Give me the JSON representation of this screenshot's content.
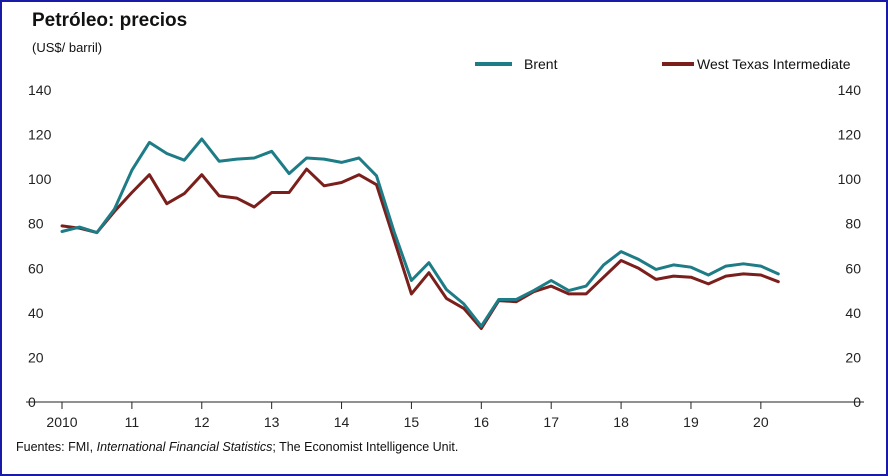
{
  "chart_data": {
    "type": "line",
    "title": "Petróleo: precios",
    "subtitle": "(US$/ barril)",
    "source": {
      "prefix": "Fuentes: FMI, ",
      "italic": "International Financial Statistics",
      "suffix": "; The Economist Intelligence Unit."
    },
    "ylim": [
      0,
      140
    ],
    "yticks": [
      0,
      20,
      40,
      60,
      80,
      100,
      120,
      140
    ],
    "xlim": [
      2010,
      2020.875
    ],
    "xticks": [
      {
        "value": 2010,
        "label": "2010"
      },
      {
        "value": 2011,
        "label": "11"
      },
      {
        "value": 2012,
        "label": "12"
      },
      {
        "value": 2013,
        "label": "13"
      },
      {
        "value": 2014,
        "label": "14"
      },
      {
        "value": 2015,
        "label": "15"
      },
      {
        "value": 2016,
        "label": "16"
      },
      {
        "value": 2017,
        "label": "17"
      },
      {
        "value": 2018,
        "label": "18"
      },
      {
        "value": 2019,
        "label": "19"
      },
      {
        "value": 2020,
        "label": "20"
      }
    ],
    "grid": false,
    "legend_position": "top-right",
    "x": [
      2010.0,
      2010.25,
      2010.5,
      2010.75,
      2011.0,
      2011.25,
      2011.5,
      2011.75,
      2012.0,
      2012.25,
      2012.5,
      2012.75,
      2013.0,
      2013.25,
      2013.5,
      2013.75,
      2014.0,
      2014.25,
      2014.5,
      2014.75,
      2015.0,
      2015.25,
      2015.5,
      2015.75,
      2016.0,
      2016.25,
      2016.5,
      2016.75,
      2017.0,
      2017.25,
      2017.5,
      2017.75,
      2018.0,
      2018.25,
      2018.5,
      2018.75,
      2019.0,
      2019.25,
      2019.5,
      2019.75,
      2020.0,
      2020.25
    ],
    "series": [
      {
        "name": "Brent",
        "color": "#1d7c86",
        "values": [
          76.5,
          78.5,
          76,
          86.5,
          104,
          116.5,
          111.5,
          108.5,
          118,
          108,
          109,
          109.5,
          112.5,
          102.5,
          109.5,
          109,
          107.5,
          109.5,
          101.5,
          76.5,
          54.5,
          62.5,
          50.5,
          44,
          34,
          46,
          46,
          50,
          54.5,
          50,
          52,
          61.5,
          67.5,
          64,
          59.5,
          61.5,
          60.5,
          57,
          61,
          62,
          61,
          57.5
        ]
      },
      {
        "name": "West Texas Intermediate",
        "color": "#7a1f1c",
        "values": [
          79,
          78,
          76,
          85.5,
          94,
          102,
          89,
          93.5,
          102,
          92.5,
          91.5,
          87.5,
          94,
          94,
          104.5,
          97,
          98.5,
          102,
          97.5,
          73,
          48.5,
          58,
          46.5,
          42,
          33,
          45.5,
          45,
          49.5,
          52,
          48.5,
          48.5,
          56,
          63.5,
          60,
          55,
          56.5,
          56,
          53,
          56.5,
          57.5,
          57,
          54
        ]
      }
    ]
  }
}
